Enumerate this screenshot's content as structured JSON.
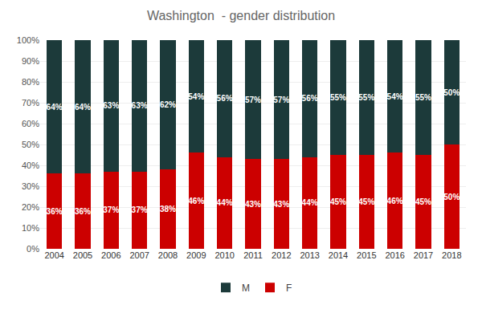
{
  "chart_data": {
    "type": "bar",
    "title": "Washington  - gender distribution",
    "categories": [
      "2004",
      "2005",
      "2006",
      "2007",
      "2008",
      "2009",
      "2010",
      "2011",
      "2012",
      "2013",
      "2014",
      "2015",
      "2016",
      "2017",
      "2018"
    ],
    "series": [
      {
        "name": "F",
        "color": "#cc0000",
        "values": [
          36,
          36,
          37,
          37,
          38,
          46,
          44,
          43,
          43,
          44,
          45,
          45,
          46,
          45,
          50
        ],
        "value_labels": [
          "36%",
          "36%",
          "37%",
          "37%",
          "38%",
          "46%",
          "44%",
          "43%",
          "43%",
          "44%",
          "45%",
          "45%",
          "46%",
          "45%",
          "50%"
        ]
      },
      {
        "name": "M",
        "color": "#1c3a3a",
        "values": [
          64,
          64,
          63,
          63,
          62,
          54,
          56,
          57,
          57,
          56,
          55,
          55,
          54,
          55,
          50
        ],
        "value_labels": [
          "64%",
          "64%",
          "63%",
          "63%",
          "62%",
          "54%",
          "56%",
          "57%",
          "57%",
          "56%",
          "55%",
          "55%",
          "54%",
          "55%",
          "50%"
        ]
      }
    ],
    "stacked": true,
    "data_labels": true,
    "ylim": [
      0,
      100
    ],
    "yticks": [
      {
        "value": 0,
        "label": "0%"
      },
      {
        "value": 10,
        "label": "10%"
      },
      {
        "value": 20,
        "label": "20%"
      },
      {
        "value": 30,
        "label": "30%"
      },
      {
        "value": 40,
        "label": "40%"
      },
      {
        "value": 50,
        "label": "50%"
      },
      {
        "value": 60,
        "label": "60%"
      },
      {
        "value": 70,
        "label": "70%"
      },
      {
        "value": 80,
        "label": "80%"
      },
      {
        "value": 90,
        "label": "90%"
      },
      {
        "value": 100,
        "label": "100%"
      }
    ],
    "grid": true,
    "legend": "bottom"
  }
}
